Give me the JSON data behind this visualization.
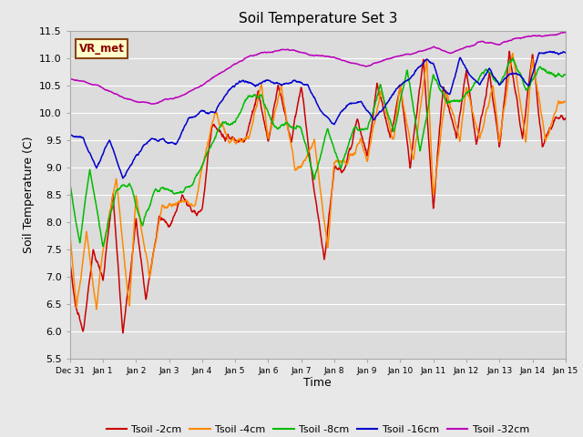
{
  "title": "Soil Temperature Set 3",
  "xlabel": "Time",
  "ylabel": "Soil Temperature (C)",
  "ylim": [
    5.5,
    11.5
  ],
  "background_color": "#e8e8e8",
  "plot_bg_color": "#dcdcdc",
  "grid_color": "#ffffff",
  "annotation_text": "VR_met",
  "annotation_bg": "#ffffcc",
  "annotation_border": "#8B4513",
  "colors": {
    "2cm": "#cc0000",
    "4cm": "#ff8800",
    "8cm": "#00bb00",
    "16cm": "#0000cc",
    "32cm": "#bb00bb"
  },
  "xtick_labels": [
    "Dec 31",
    "Jan 1",
    "Jan 2",
    "Jan 3",
    "Jan 4",
    "Jan 5",
    "Jan 6",
    "Jan 7",
    "Jan 8",
    "Jan 9",
    "Jan 10",
    "Jan 11",
    "Jan 12",
    "Jan 13",
    "Jan 14",
    "Jan 15"
  ],
  "xtick_positions": [
    0,
    1,
    2,
    3,
    4,
    5,
    6,
    7,
    8,
    9,
    10,
    11,
    12,
    13,
    14,
    15
  ],
  "ytick_labels": [
    "5.5",
    "6.0",
    "6.5",
    "7.0",
    "7.5",
    "8.0",
    "8.5",
    "9.0",
    "9.5",
    "10.0",
    "10.5",
    "11.0",
    "11.5"
  ],
  "ytick_positions": [
    5.5,
    6.0,
    6.5,
    7.0,
    7.5,
    8.0,
    8.5,
    9.0,
    9.5,
    10.0,
    10.5,
    11.0,
    11.5
  ]
}
